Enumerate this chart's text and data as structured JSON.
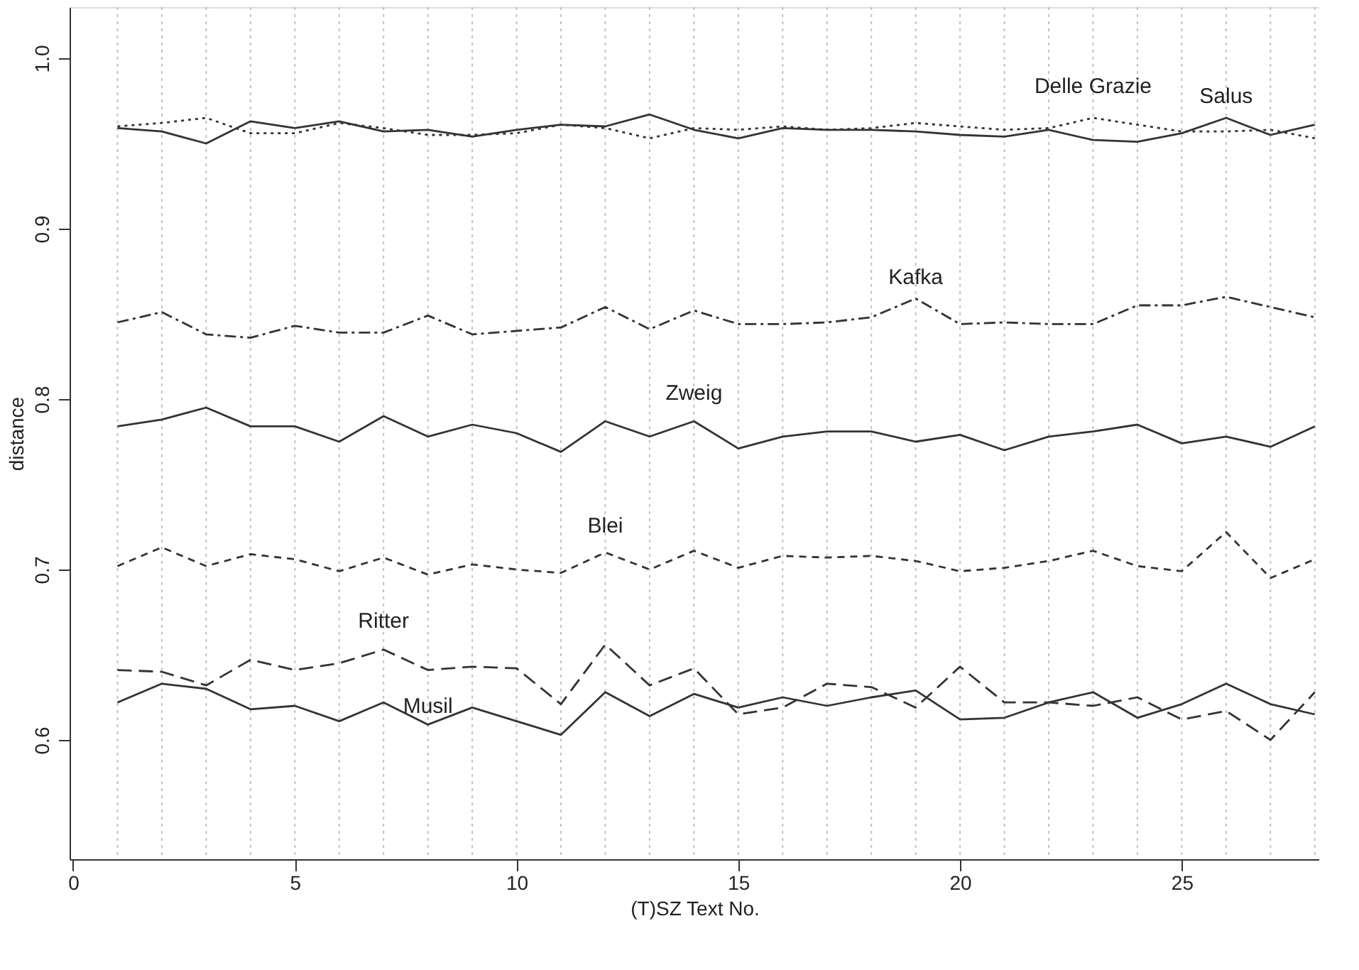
{
  "chart_data": {
    "type": "line",
    "xlabel": "(T)SZ Text No.",
    "ylabel": "distance",
    "x": [
      1,
      2,
      3,
      4,
      5,
      6,
      7,
      8,
      9,
      10,
      11,
      12,
      13,
      14,
      15,
      16,
      17,
      18,
      19,
      20,
      21,
      22,
      23,
      24,
      25,
      26,
      27,
      28
    ],
    "xlim": [
      -0.08,
      28.1
    ],
    "ylim": [
      0.53,
      1.03
    ],
    "xticks": [
      0,
      5,
      10,
      15,
      20,
      25
    ],
    "yticks": [
      {
        "value": 0.6,
        "label": "0.6"
      },
      {
        "value": 0.7,
        "label": "0.7"
      },
      {
        "value": 0.8,
        "label": "0.8"
      },
      {
        "value": 0.9,
        "label": "0.9"
      },
      {
        "value": 1.0,
        "label": "1.0"
      }
    ],
    "grid": false,
    "marker": "none",
    "series": [
      {
        "color": "#333333",
        "line_style": "solid",
        "values": [
          0.959,
          0.957,
          0.95,
          0.963,
          0.959,
          0.963,
          0.957,
          0.958,
          0.954,
          0.958,
          0.961,
          0.96,
          0.967,
          0.958,
          0.953,
          0.959,
          0.958,
          0.958,
          0.957,
          0.955,
          0.954,
          0.958,
          0.952,
          0.951,
          0.956,
          0.965,
          0.955,
          0.961
        ]
      },
      {
        "color": "#333333",
        "line_style": "dotted",
        "values": [
          0.96,
          0.962,
          0.965,
          0.956,
          0.956,
          0.962,
          0.959,
          0.955,
          0.955,
          0.956,
          0.961,
          0.959,
          0.953,
          0.959,
          0.958,
          0.96,
          0.958,
          0.959,
          0.962,
          0.96,
          0.958,
          0.959,
          0.965,
          0.961,
          0.957,
          0.957,
          0.958,
          0.953
        ]
      },
      {
        "color": "#333333",
        "line_style": "dashdot",
        "values": [
          0.845,
          0.851,
          0.838,
          0.836,
          0.843,
          0.839,
          0.839,
          0.849,
          0.838,
          0.84,
          0.842,
          0.854,
          0.841,
          0.852,
          0.844,
          0.844,
          0.845,
          0.848,
          0.859,
          0.844,
          0.845,
          0.844,
          0.844,
          0.855,
          0.855,
          0.86,
          0.854,
          0.848
        ]
      },
      {
        "color": "#333333",
        "line_style": "solid",
        "values": [
          0.784,
          0.788,
          0.795,
          0.784,
          0.784,
          0.775,
          0.79,
          0.778,
          0.785,
          0.78,
          0.769,
          0.787,
          0.778,
          0.787,
          0.771,
          0.778,
          0.781,
          0.781,
          0.775,
          0.779,
          0.77,
          0.778,
          0.781,
          0.785,
          0.774,
          0.778,
          0.772,
          0.784
        ]
      },
      {
        "color": "#333333",
        "line_style": "dashed",
        "values": [
          0.702,
          0.713,
          0.702,
          0.709,
          0.706,
          0.699,
          0.707,
          0.697,
          0.703,
          0.7,
          0.698,
          0.71,
          0.7,
          0.711,
          0.701,
          0.708,
          0.707,
          0.708,
          0.705,
          0.699,
          0.701,
          0.705,
          0.711,
          0.702,
          0.699,
          0.722,
          0.695,
          0.706
        ]
      },
      {
        "color": "#333333",
        "line_style": "longdash",
        "values": [
          0.641,
          0.64,
          0.632,
          0.647,
          0.641,
          0.645,
          0.653,
          0.641,
          0.643,
          0.642,
          0.621,
          0.656,
          0.632,
          0.642,
          0.615,
          0.619,
          0.633,
          0.631,
          0.619,
          0.643,
          0.622,
          0.622,
          0.62,
          0.625,
          0.612,
          0.617,
          0.6,
          0.628
        ]
      },
      {
        "color": "#333333",
        "line_style": "solid",
        "values": [
          0.622,
          0.633,
          0.63,
          0.618,
          0.62,
          0.611,
          0.622,
          0.609,
          0.619,
          0.611,
          0.603,
          0.628,
          0.614,
          0.627,
          0.619,
          0.625,
          0.62,
          0.625,
          0.629,
          0.612,
          0.613,
          0.622,
          0.628,
          0.613,
          0.621,
          0.633,
          0.621,
          0.615
        ]
      }
    ],
    "annotations": [
      {
        "text": "Delle Grazie",
        "x": 23,
        "y": 0.973
      },
      {
        "text": "Salus",
        "x": 26,
        "y": 0.967
      },
      {
        "text": "Kafka",
        "x": 19,
        "y": 0.861
      },
      {
        "text": "Zweig",
        "x": 14,
        "y": 0.793
      },
      {
        "text": "Blei",
        "x": 12,
        "y": 0.715
      },
      {
        "text": "Ritter",
        "x": 7,
        "y": 0.659
      },
      {
        "text": "Musil",
        "x": 8,
        "y": 0.609
      }
    ],
    "ref_lines": [
      {
        "axis": "x",
        "value": 1,
        "color": "#c0c0c0",
        "line_style": "dotted"
      },
      {
        "axis": "x",
        "value": 2,
        "color": "#c0c0c0",
        "line_style": "dotted"
      },
      {
        "axis": "x",
        "value": 3,
        "color": "#c0c0c0",
        "line_style": "dotted"
      },
      {
        "axis": "x",
        "value": 4,
        "color": "#c0c0c0",
        "line_style": "dotted"
      },
      {
        "axis": "x",
        "value": 5,
        "color": "#c0c0c0",
        "line_style": "dotted"
      },
      {
        "axis": "x",
        "value": 6,
        "color": "#c0c0c0",
        "line_style": "dotted"
      },
      {
        "axis": "x",
        "value": 7,
        "color": "#c0c0c0",
        "line_style": "dotted"
      },
      {
        "axis": "x",
        "value": 8,
        "color": "#c0c0c0",
        "line_style": "dotted"
      },
      {
        "axis": "x",
        "value": 9,
        "color": "#c0c0c0",
        "line_style": "dotted"
      },
      {
        "axis": "x",
        "value": 10,
        "color": "#c0c0c0",
        "line_style": "dotted"
      },
      {
        "axis": "x",
        "value": 11,
        "color": "#c0c0c0",
        "line_style": "dotted"
      },
      {
        "axis": "x",
        "value": 12,
        "color": "#c0c0c0",
        "line_style": "dotted"
      },
      {
        "axis": "x",
        "value": 13,
        "color": "#c0c0c0",
        "line_style": "dotted"
      },
      {
        "axis": "x",
        "value": 14,
        "color": "#c0c0c0",
        "line_style": "dotted"
      },
      {
        "axis": "x",
        "value": 15,
        "color": "#c0c0c0",
        "line_style": "dotted"
      },
      {
        "axis": "x",
        "value": 16,
        "color": "#c0c0c0",
        "line_style": "dotted"
      },
      {
        "axis": "x",
        "value": 17,
        "color": "#c0c0c0",
        "line_style": "dotted"
      },
      {
        "axis": "x",
        "value": 18,
        "color": "#c0c0c0",
        "line_style": "dotted"
      },
      {
        "axis": "x",
        "value": 19,
        "color": "#c0c0c0",
        "line_style": "dotted"
      },
      {
        "axis": "x",
        "value": 20,
        "color": "#c0c0c0",
        "line_style": "dotted"
      },
      {
        "axis": "x",
        "value": 21,
        "color": "#c0c0c0",
        "line_style": "dotted"
      },
      {
        "axis": "x",
        "value": 22,
        "color": "#c0c0c0",
        "line_style": "dotted"
      },
      {
        "axis": "x",
        "value": 23,
        "color": "#c0c0c0",
        "line_style": "dotted"
      },
      {
        "axis": "x",
        "value": 24,
        "color": "#c0c0c0",
        "line_style": "dotted"
      },
      {
        "axis": "x",
        "value": 25,
        "color": "#c0c0c0",
        "line_style": "dotted"
      },
      {
        "axis": "x",
        "value": 26,
        "color": "#c0c0c0",
        "line_style": "dotted"
      },
      {
        "axis": "x",
        "value": 27,
        "color": "#c0c0c0",
        "line_style": "dotted"
      },
      {
        "axis": "x",
        "value": 28,
        "color": "#c0c0c0",
        "line_style": "dotted"
      }
    ]
  }
}
